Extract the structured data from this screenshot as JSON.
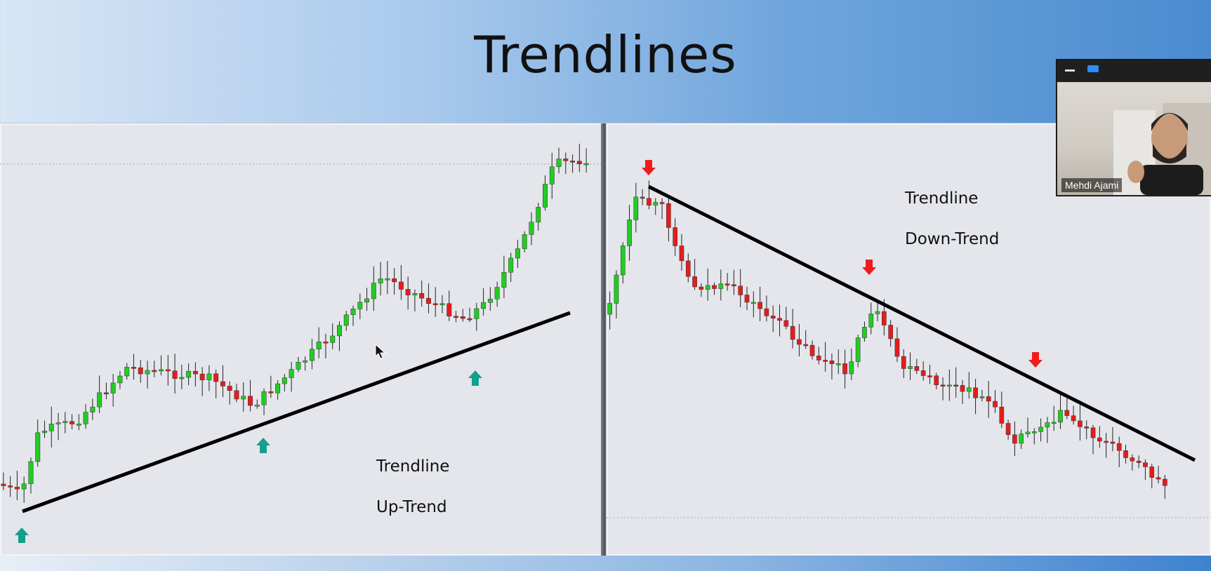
{
  "slide": {
    "title": "Trendlines"
  },
  "left_chart": {
    "label_line1": "Trendline",
    "label_line2": "Up-Trend",
    "marker_color": "#11a08c"
  },
  "right_chart": {
    "label_line1": "Trendline",
    "label_line2": "Down-Trend",
    "marker_color": "#f21b1b"
  },
  "colors": {
    "bull": "#22cc22",
    "bear": "#e51c1c",
    "trendline": "#000000"
  },
  "video": {
    "participant_name": "Mehdi Ajami",
    "icons": [
      "minimize-icon",
      "view-toggle-icon"
    ]
  }
}
